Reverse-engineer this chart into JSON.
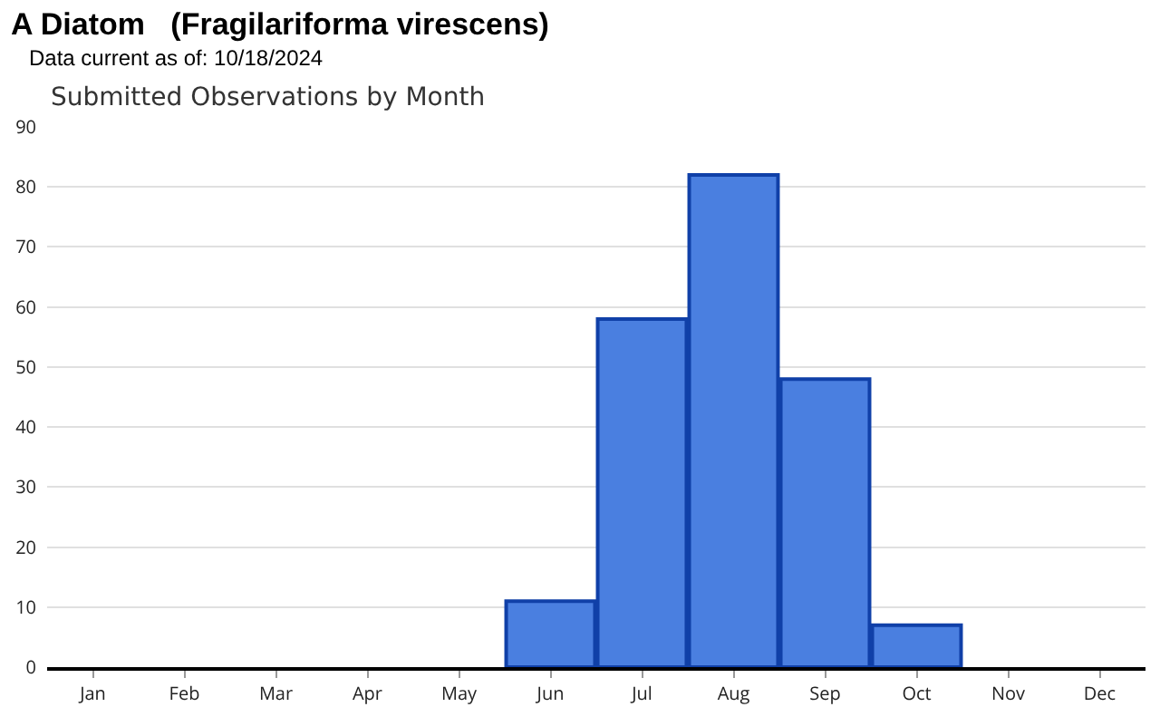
{
  "chart_data": {
    "type": "bar",
    "title": "A Diatom   (Fragilariforma virescens)",
    "subtitle": "Data current as of: 10/18/2024",
    "annotations": [
      "Submitted Observations by Month"
    ],
    "categories": [
      "Jan",
      "Feb",
      "Mar",
      "Apr",
      "May",
      "Jun",
      "Jul",
      "Aug",
      "Sep",
      "Oct",
      "Nov",
      "Dec"
    ],
    "values": [
      0,
      0,
      0,
      0,
      0,
      11,
      58,
      82,
      48,
      7,
      0,
      0
    ],
    "color": "#4a7fe0",
    "ylim": [
      0,
      90
    ],
    "yticks": [
      0,
      10,
      20,
      30,
      40,
      50,
      60,
      70,
      80,
      90
    ],
    "grid": "y"
  }
}
